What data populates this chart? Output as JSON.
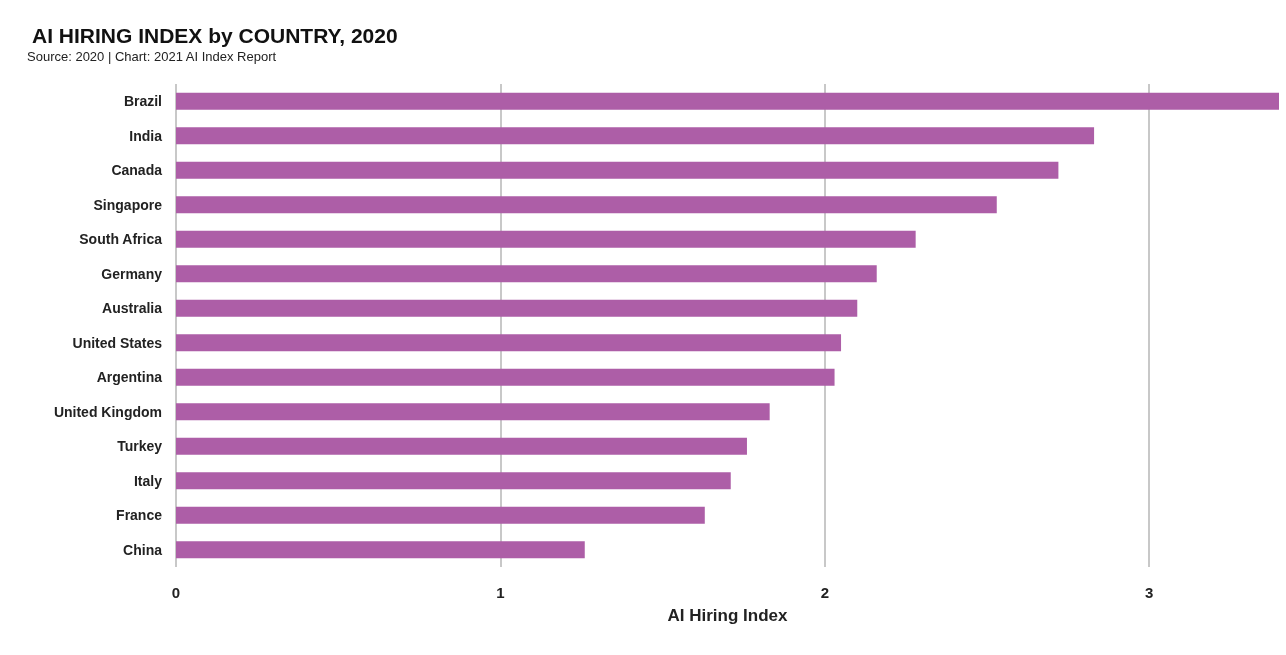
{
  "chart_data": {
    "type": "bar",
    "orientation": "horizontal",
    "title": "AI HIRING INDEX by COUNTRY, 2020",
    "annotations": [
      "Source: 2020 | Chart: 2021 AI Index Report"
    ],
    "xlabel": "AI Hiring Index",
    "categories": [
      "Brazil",
      "India",
      "Canada",
      "Singapore",
      "South Africa",
      "Germany",
      "Australia",
      "United States",
      "Argentina",
      "United Kingdom",
      "Turkey",
      "Italy",
      "France",
      "China"
    ],
    "values": [
      3.4,
      2.83,
      2.72,
      2.53,
      2.28,
      2.16,
      2.1,
      2.05,
      2.03,
      1.83,
      1.76,
      1.71,
      1.63,
      1.26
    ],
    "color": "#ad5ea7",
    "xlim": [
      0,
      3.4
    ],
    "xticks": [
      0,
      1,
      2,
      3
    ],
    "grid": "x"
  }
}
